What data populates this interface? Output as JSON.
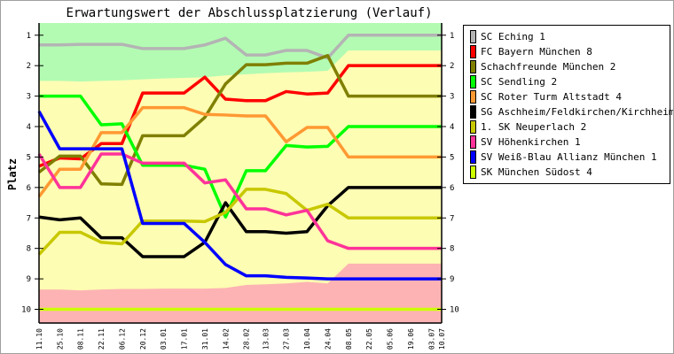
{
  "chart_data": {
    "type": "line",
    "title": "Erwartungswert der Abschlussplatzierung (Verlauf)",
    "ylabel": "Platz",
    "xlabel": "",
    "y_inverted": true,
    "ylim": [
      0.6,
      10.45
    ],
    "yticks": [
      1,
      2,
      3,
      4,
      5,
      6,
      7,
      8,
      9,
      10
    ],
    "grid": false,
    "legend_position": "right",
    "categories": [
      "11.10",
      "25.10",
      "08.11",
      "22.11",
      "06.12",
      "20.12",
      "03.01",
      "17.01",
      "31.01",
      "14.02",
      "28.02",
      "13.03",
      "27.03",
      "10.04",
      "24.04",
      "08.05",
      "22.05",
      "05.06",
      "19.06",
      "03.07",
      "10.07"
    ],
    "bands": {
      "top_zone_color": "#b3fbb3",
      "middle_zone_color": "#fdfdb3",
      "bottom_zone_color": "#fdb3b3",
      "top_zone_lower_edge": [
        2.5,
        2.5,
        2.52,
        2.5,
        2.48,
        2.45,
        2.42,
        2.4,
        2.38,
        2.32,
        2.28,
        2.25,
        2.22,
        2.2,
        2.17,
        1.5,
        1.5,
        1.5,
        1.5,
        1.5,
        1.5
      ],
      "bottom_zone_upper_edge": [
        9.35,
        9.35,
        9.38,
        9.35,
        9.33,
        9.33,
        9.32,
        9.32,
        9.32,
        9.3,
        9.2,
        9.18,
        9.15,
        9.1,
        9.15,
        8.5,
        8.5,
        8.5,
        8.5,
        8.5,
        8.5
      ]
    },
    "series": [
      {
        "name": "SC Eching 1",
        "color": "#b4b4b4",
        "values": [
          1.32,
          1.32,
          1.3,
          1.3,
          1.3,
          1.44,
          1.44,
          1.44,
          1.32,
          1.1,
          1.65,
          1.65,
          1.5,
          1.5,
          1.75,
          1,
          1,
          1,
          1,
          1,
          1
        ]
      },
      {
        "name": "FC Bayern München 8",
        "color": "#ff0000",
        "values": [
          5.3,
          5.03,
          5.06,
          4.56,
          4.56,
          2.9,
          2.9,
          2.9,
          2.38,
          3.1,
          3.15,
          3.15,
          2.85,
          2.93,
          2.9,
          2,
          2,
          2,
          2,
          2,
          2
        ]
      },
      {
        "name": "Schachfreunde München 2",
        "color": "#7f7f00",
        "values": [
          5.5,
          4.97,
          4.97,
          5.88,
          5.9,
          4.3,
          4.3,
          4.3,
          3.7,
          2.6,
          1.97,
          1.97,
          1.92,
          1.92,
          1.67,
          3,
          3,
          3,
          3,
          3,
          3
        ]
      },
      {
        "name": "SC Sendling 2",
        "color": "#00ff00",
        "values": [
          3,
          3,
          3,
          3.94,
          3.91,
          5.27,
          5.27,
          5.27,
          5.4,
          6.97,
          5.45,
          5.45,
          4.62,
          4.67,
          4.65,
          4,
          4,
          4,
          4,
          4,
          4
        ]
      },
      {
        "name": "SC Roter Turm Altstadt 4",
        "color": "#ff9933",
        "values": [
          6.3,
          5.4,
          5.4,
          4.2,
          4.2,
          3.38,
          3.38,
          3.38,
          3.6,
          3.62,
          3.65,
          3.65,
          4.5,
          4.03,
          4.03,
          5,
          5,
          5,
          5,
          5,
          5
        ]
      },
      {
        "name": "SG Aschheim/Feldkirchen/Kirchheim 2",
        "color": "#000000",
        "values": [
          6.97,
          7.06,
          7,
          7.65,
          7.65,
          8.27,
          8.27,
          8.27,
          7.8,
          6.5,
          7.45,
          7.45,
          7.5,
          7.45,
          6.6,
          6,
          6,
          6,
          6,
          6,
          6
        ]
      },
      {
        "name": "1. SK Neuperlach 2",
        "color": "#c8c800",
        "values": [
          8.2,
          7.47,
          7.47,
          7.8,
          7.85,
          7.1,
          7.1,
          7.1,
          7.12,
          6.82,
          6.06,
          6.06,
          6.2,
          6.75,
          6.55,
          7,
          7,
          7,
          7,
          7,
          7
        ]
      },
      {
        "name": "SV Höhenkirchen 1",
        "color": "#ff3399",
        "values": [
          4.9,
          6,
          6,
          4.9,
          4.9,
          5.2,
          5.2,
          5.2,
          5.85,
          5.75,
          6.7,
          6.7,
          6.9,
          6.75,
          7.75,
          8,
          8,
          8,
          8,
          8,
          8
        ]
      },
      {
        "name": "SV Weiß-Blau Allianz München 1",
        "color": "#0000ff",
        "values": [
          3.5,
          4.73,
          4.73,
          4.73,
          4.73,
          7.18,
          7.18,
          7.18,
          7.8,
          8.53,
          8.9,
          8.9,
          8.95,
          8.97,
          9,
          9,
          9,
          9,
          9,
          9,
          9
        ]
      },
      {
        "name": "SK München Südost 4",
        "color": "#ccff00",
        "values": [
          10,
          10,
          10,
          10,
          10,
          10,
          10,
          10,
          10,
          10,
          10,
          10,
          10,
          10,
          10,
          10,
          10,
          10,
          10,
          10,
          10
        ]
      }
    ]
  }
}
